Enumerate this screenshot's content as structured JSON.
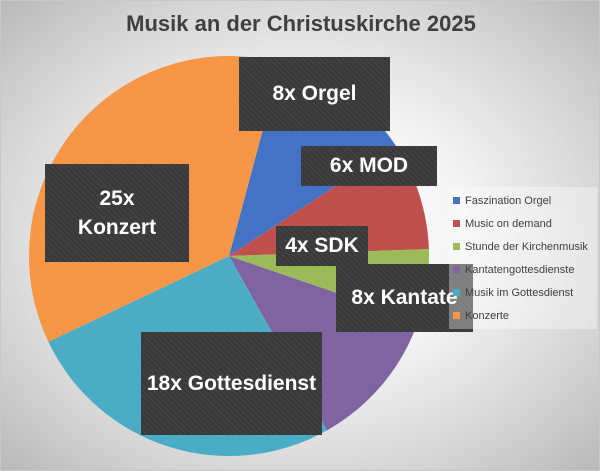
{
  "chart_data": {
    "type": "pie",
    "title": "Musik an der Christuskirche 2025",
    "categories": [
      "Faszination Orgel",
      "Music on demand",
      "Stunde der Kirchenmusik",
      "Kantatengottesdienste",
      "Musik im Gottesdienst",
      "Konzerte"
    ],
    "values": [
      8,
      6,
      4,
      8,
      18,
      25
    ],
    "colors": [
      "#4472C4",
      "#C0504D",
      "#9BBB59",
      "#8064A2",
      "#4BACC6",
      "#F79646"
    ],
    "data_labels": [
      "8x Orgel",
      "6x MOD",
      "4x SDK",
      "8x Kantate",
      "18x Gottesdienst",
      "25x Konzert"
    ],
    "legend_position": "right",
    "start_angle_deg": 15
  }
}
